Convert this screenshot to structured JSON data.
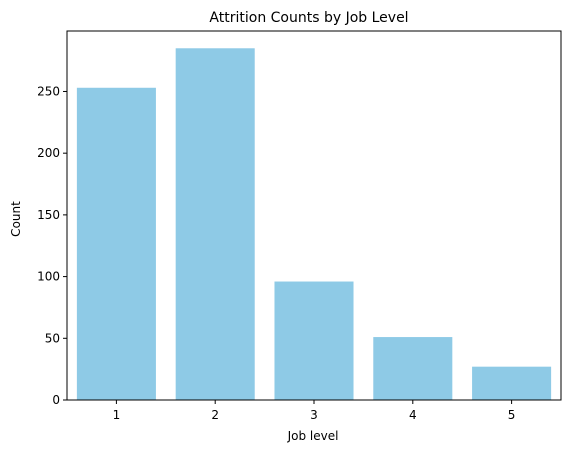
{
  "chart_data": {
    "type": "bar",
    "title": "Attrition Counts by Job Level",
    "xlabel": "Job level",
    "ylabel": "Count",
    "categories": [
      "1",
      "2",
      "3",
      "4",
      "5"
    ],
    "values": [
      253,
      285,
      96,
      51,
      27
    ],
    "ylim": [
      0,
      299
    ],
    "yticks": [
      0,
      50,
      100,
      150,
      200,
      250
    ],
    "grid": false,
    "bar_color": "#8ecae6"
  }
}
